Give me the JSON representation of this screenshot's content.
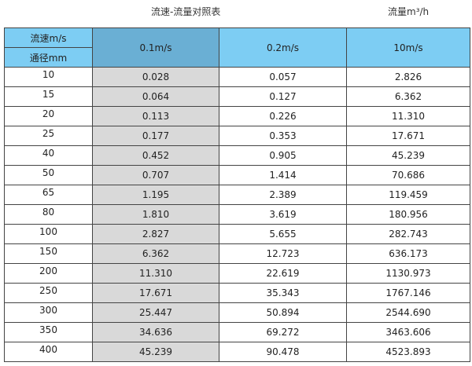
{
  "title": "流速-流量对照表",
  "unit_label": "流量m³/h",
  "header": {
    "velocity_label": "流速m/s",
    "diameter_label": "通径mm",
    "columns": [
      "0.1m/s",
      "0.2m/s",
      "10m/s"
    ]
  },
  "colors": {
    "header": "#7dcdf3",
    "header_selected": "#6aafd4",
    "highlight_column": "#d9d9d9"
  },
  "rows": [
    [
      "10",
      "0.028",
      "0.057",
      "2.826"
    ],
    [
      "15",
      "0.064",
      "0.127",
      "6.362"
    ],
    [
      "20",
      "0.113",
      "0.226",
      "11.310"
    ],
    [
      "25",
      "0.177",
      "0.353",
      "17.671"
    ],
    [
      "40",
      "0.452",
      "0.905",
      "45.239"
    ],
    [
      "50",
      "0.707",
      "1.414",
      "70.686"
    ],
    [
      "65",
      "1.195",
      "2.389",
      "119.459"
    ],
    [
      "80",
      "1.810",
      "3.619",
      "180.956"
    ],
    [
      "100",
      "2.827",
      "5.655",
      "282.743"
    ],
    [
      "150",
      "6.362",
      "12.723",
      "636.173"
    ],
    [
      "200",
      "11.310",
      "22.619",
      "1130.973"
    ],
    [
      "250",
      "17.671",
      "35.343",
      "1767.146"
    ],
    [
      "300",
      "25.447",
      "50.894",
      "2544.690"
    ],
    [
      "350",
      "34.636",
      "69.272",
      "3463.606"
    ],
    [
      "400",
      "45.239",
      "90.478",
      "4523.893"
    ]
  ]
}
